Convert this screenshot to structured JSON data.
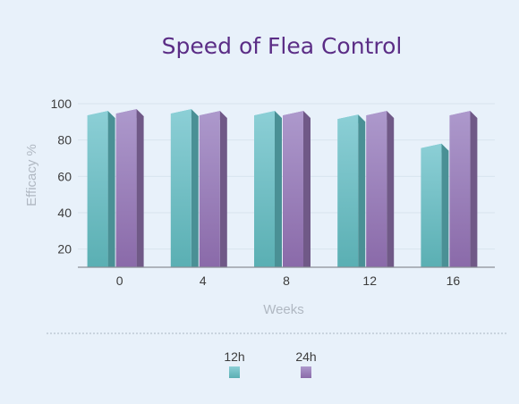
{
  "chart_data": {
    "type": "bar",
    "title": "Speed of Flea Control",
    "xlabel": "Weeks",
    "ylabel": "Efficacy %",
    "categories": [
      "0",
      "4",
      "8",
      "12",
      "16"
    ],
    "series": [
      {
        "name": "12h",
        "values": [
          96,
          97,
          96,
          94,
          78
        ],
        "color": "#5fb8bf"
      },
      {
        "name": "24h",
        "values": [
          97,
          96,
          96,
          96,
          96
        ],
        "color": "#8f72ad"
      }
    ],
    "y_ticks": [
      20,
      40,
      60,
      80,
      100
    ],
    "ylim": [
      10,
      100
    ],
    "grid": true,
    "legend_position": "bottom",
    "style": "3d-columns"
  }
}
